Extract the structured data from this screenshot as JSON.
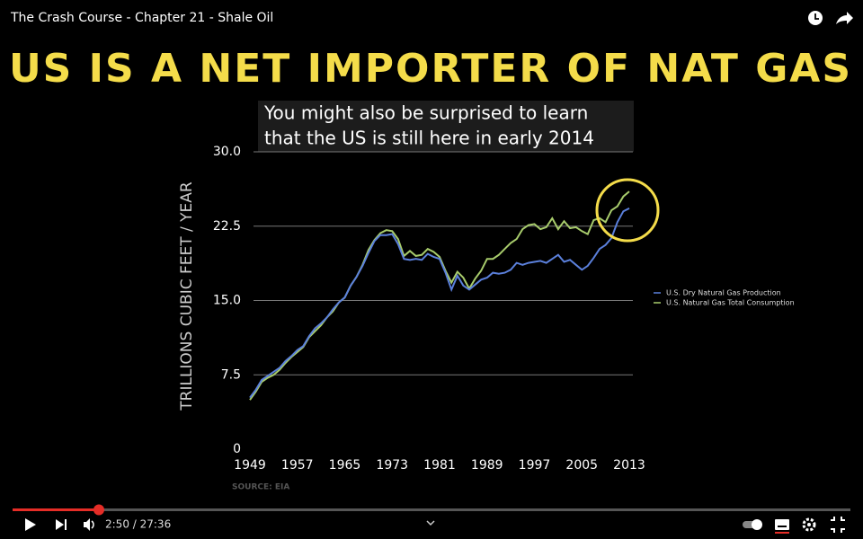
{
  "player": {
    "video_title": "The Crash Course - Chapter 21 - Shale Oil",
    "time": "2:50 / 27:36"
  },
  "slide": {
    "heading": "US IS A NET IMPORTER OF NAT GAS",
    "caption": [
      "You might also be surprised to learn",
      "that the US is still here in early 2014"
    ],
    "source": "SOURCE: EIA"
  },
  "chart_data": {
    "type": "line",
    "y_label": "TRILLIONS CUBIC FEET / YEAR",
    "x": [
      1949,
      1950,
      1951,
      1952,
      1953,
      1954,
      1955,
      1956,
      1957,
      1958,
      1959,
      1960,
      1961,
      1962,
      1963,
      1964,
      1965,
      1966,
      1967,
      1968,
      1969,
      1970,
      1971,
      1972,
      1973,
      1974,
      1975,
      1976,
      1977,
      1978,
      1979,
      1980,
      1981,
      1982,
      1983,
      1984,
      1985,
      1986,
      1987,
      1988,
      1989,
      1990,
      1991,
      1992,
      1993,
      1994,
      1995,
      1996,
      1997,
      1998,
      1999,
      2000,
      2001,
      2002,
      2003,
      2004,
      2005,
      2006,
      2007,
      2008,
      2009,
      2010,
      2011,
      2012,
      2013
    ],
    "series": [
      {
        "name": "U.S. Dry Natural Gas Production",
        "color": "#5b80dc",
        "values": [
          5.2,
          6.0,
          7.0,
          7.4,
          7.8,
          8.2,
          8.9,
          9.4,
          10.0,
          10.4,
          11.4,
          12.2,
          12.7,
          13.3,
          14.1,
          14.8,
          15.3,
          16.5,
          17.4,
          18.5,
          19.8,
          21.0,
          21.6,
          21.6,
          21.7,
          20.7,
          19.2,
          19.1,
          19.2,
          19.1,
          19.7,
          19.4,
          19.2,
          17.8,
          16.1,
          17.5,
          16.5,
          16.1,
          16.6,
          17.1,
          17.3,
          17.8,
          17.7,
          17.8,
          18.1,
          18.8,
          18.6,
          18.8,
          18.9,
          19.0,
          18.8,
          19.2,
          19.6,
          18.9,
          19.1,
          18.6,
          18.1,
          18.5,
          19.3,
          20.2,
          20.6,
          21.3,
          22.9,
          24.0,
          24.3
        ]
      },
      {
        "name": "U.S. Natural Gas Total Consumption",
        "color": "#a8cc6c",
        "values": [
          4.97,
          5.8,
          6.8,
          7.2,
          7.5,
          8.0,
          8.7,
          9.3,
          9.8,
          10.3,
          11.3,
          11.9,
          12.5,
          13.3,
          13.9,
          14.8,
          15.3,
          16.5,
          17.4,
          18.6,
          20.1,
          21.1,
          21.8,
          22.1,
          22.0,
          21.2,
          19.5,
          20.0,
          19.5,
          19.6,
          20.2,
          19.9,
          19.4,
          18.0,
          16.8,
          17.9,
          17.3,
          16.2,
          17.2,
          18.0,
          19.2,
          19.2,
          19.6,
          20.2,
          20.8,
          21.2,
          22.2,
          22.6,
          22.7,
          22.2,
          22.4,
          23.3,
          22.2,
          23.0,
          22.3,
          22.4,
          22.0,
          21.7,
          23.1,
          23.3,
          22.9,
          24.1,
          24.5,
          25.5,
          26.0
        ]
      }
    ],
    "xlim": [
      1949,
      2013
    ],
    "xticks": [
      1949,
      1957,
      1965,
      1973,
      1981,
      1989,
      1997,
      2005,
      2013
    ],
    "ylim": [
      0,
      30
    ],
    "yticks": [
      0,
      7.5,
      {
        "value": 15,
        "label": "15.0"
      },
      22.5,
      {
        "value": 30,
        "label": "30.0"
      }
    ],
    "grid": true
  }
}
